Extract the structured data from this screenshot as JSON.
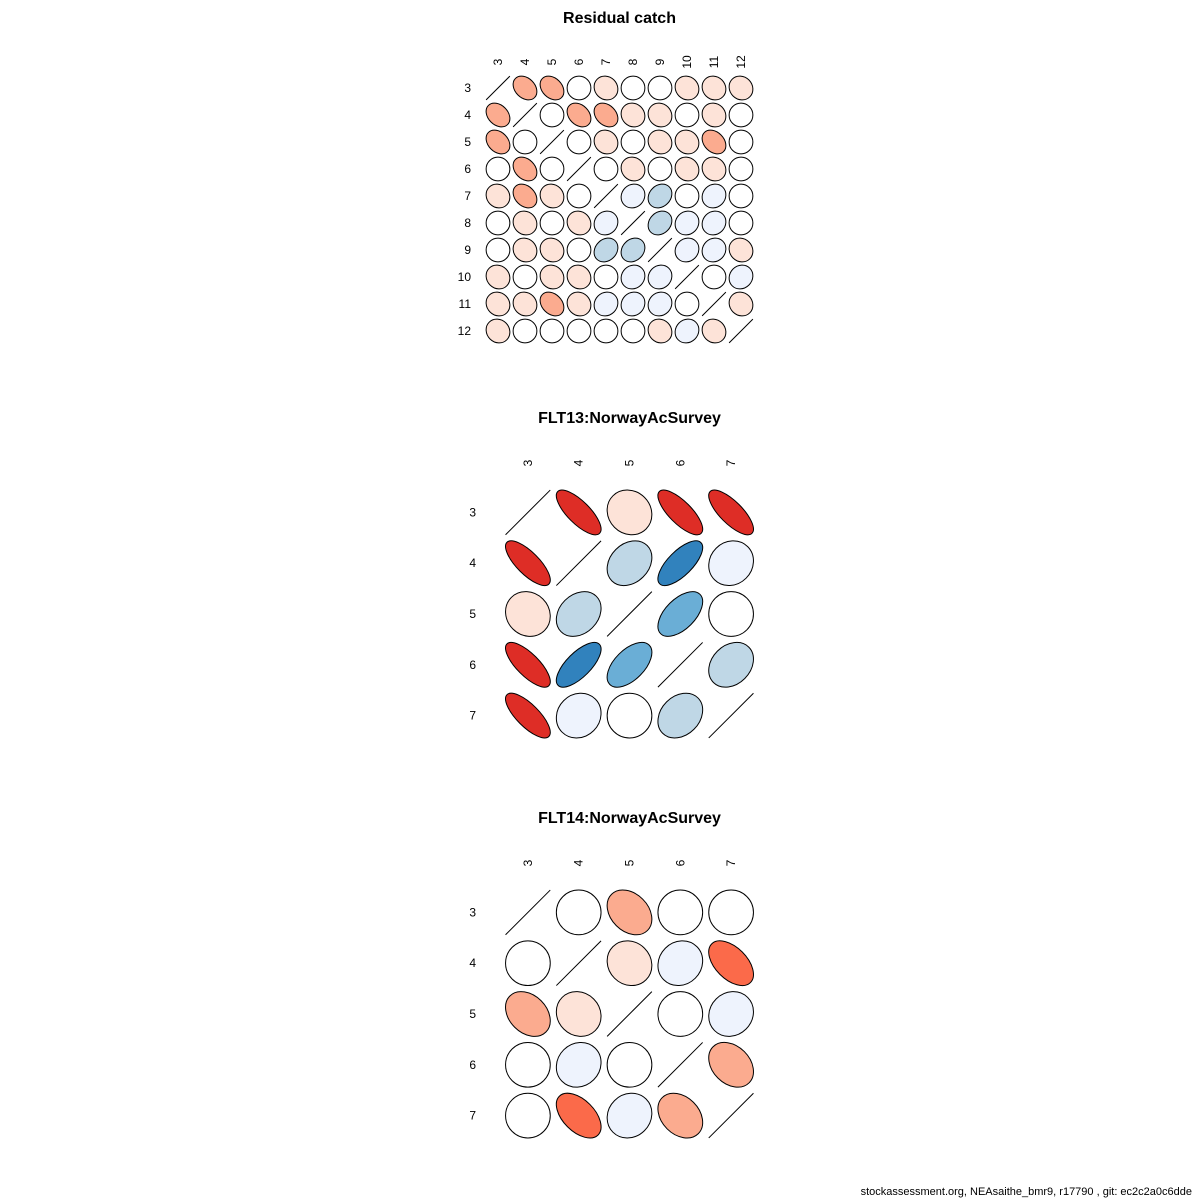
{
  "footer": "stockassessment.org, NEAsaithe_bmr9, r17790 , git: ec2c2a0c6dde",
  "colors": {
    "palette_neg": [
      "#ffffff",
      "#eef3fd",
      "#bfd7e6",
      "#6aaed6",
      "#3182bd"
    ],
    "palette_pos": [
      "#ffffff",
      "#fde3d8",
      "#fbab8f",
      "#fb6a4a",
      "#de2d26"
    ],
    "outline": "#000000"
  },
  "chart_data": [
    {
      "type": "heatmap",
      "subtype": "correlation-ellipse",
      "title": "Residual catch",
      "labels": [
        "3",
        "4",
        "5",
        "6",
        "7",
        "8",
        "9",
        "10",
        "11",
        "12"
      ],
      "matrix": [
        [
          1,
          0.3,
          0.3,
          0,
          0.1,
          0,
          0,
          0.1,
          0.1,
          0.1
        ],
        [
          0.3,
          1,
          0,
          0.3,
          0.3,
          0.1,
          0.1,
          0,
          0.1,
          0
        ],
        [
          0.3,
          0,
          1,
          0,
          0.1,
          0,
          0.1,
          0.1,
          0.3,
          0
        ],
        [
          0,
          0.3,
          0,
          1,
          0,
          0.1,
          0,
          0.1,
          0.1,
          0
        ],
        [
          0.1,
          0.3,
          0.1,
          0,
          1,
          -0.1,
          -0.2,
          0,
          -0.1,
          0
        ],
        [
          0,
          0.1,
          0,
          0.1,
          -0.1,
          1,
          -0.2,
          -0.1,
          -0.1,
          0
        ],
        [
          0,
          0.1,
          0.1,
          0,
          -0.2,
          -0.2,
          1,
          -0.1,
          -0.1,
          0.1
        ],
        [
          0.1,
          0,
          0.1,
          0.1,
          0,
          -0.1,
          -0.1,
          1,
          0,
          -0.1
        ],
        [
          0.1,
          0.1,
          0.3,
          0.1,
          -0.1,
          -0.1,
          -0.1,
          0,
          1,
          0.1
        ],
        [
          0.1,
          0,
          0,
          0,
          0,
          0,
          0.1,
          -0.1,
          0.1,
          1
        ]
      ]
    },
    {
      "type": "heatmap",
      "subtype": "correlation-ellipse",
      "title": "FLT13:NorwayAcSurvey",
      "labels": [
        "3",
        "4",
        "5",
        "6",
        "7"
      ],
      "matrix": [
        [
          1,
          0.75,
          0.1,
          0.75,
          0.75
        ],
        [
          0.75,
          1,
          -0.25,
          -0.7,
          -0.1
        ],
        [
          0.1,
          -0.25,
          1,
          -0.55,
          0
        ],
        [
          0.75,
          -0.7,
          -0.55,
          1,
          -0.25
        ],
        [
          0.75,
          -0.1,
          0,
          -0.25,
          1
        ]
      ]
    },
    {
      "type": "heatmap",
      "subtype": "correlation-ellipse",
      "title": "FLT14:NorwayAcSurvey",
      "labels": [
        "3",
        "4",
        "5",
        "6",
        "7"
      ],
      "matrix": [
        [
          1,
          0,
          0.3,
          0,
          0
        ],
        [
          0,
          1,
          0.1,
          -0.1,
          0.5
        ],
        [
          0.3,
          0.1,
          1,
          0,
          -0.1
        ],
        [
          0,
          -0.1,
          0,
          1,
          0.3
        ],
        [
          0,
          0.5,
          -0.1,
          0.3,
          1
        ]
      ]
    }
  ]
}
